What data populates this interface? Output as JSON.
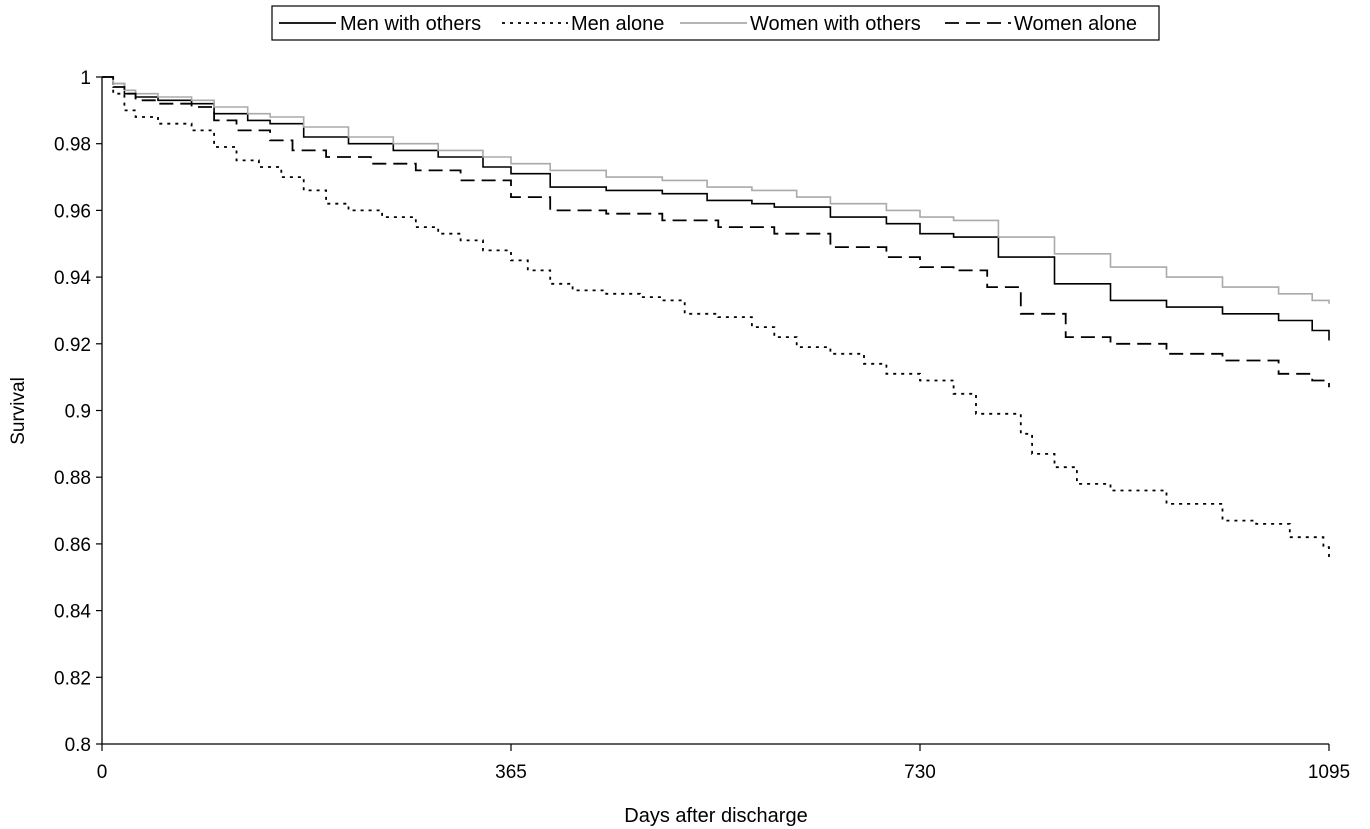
{
  "chart_data": {
    "type": "line",
    "xlabel": "Days after discharge",
    "ylabel": "Survival",
    "xlim": [
      0,
      1095
    ],
    "ylim": [
      0.8,
      1
    ],
    "xticks": [
      "0",
      "365",
      "730",
      "1095"
    ],
    "yticks": [
      "0.8",
      "0.82",
      "0.84",
      "0.86",
      "0.88",
      "0.9",
      "0.92",
      "0.94",
      "0.96",
      "0.98",
      "1"
    ],
    "grid": false,
    "legend_position": "top-center",
    "series": [
      {
        "name": "Men with others",
        "color": "#000000",
        "style": "solid",
        "x": [
          0,
          10,
          20,
          30,
          50,
          80,
          100,
          130,
          150,
          180,
          220,
          260,
          300,
          340,
          365,
          400,
          450,
          500,
          540,
          580,
          600,
          650,
          700,
          730,
          760,
          800,
          850,
          900,
          950,
          1000,
          1050,
          1080,
          1095
        ],
        "y": [
          1.0,
          0.998,
          0.995,
          0.994,
          0.993,
          0.992,
          0.989,
          0.987,
          0.986,
          0.982,
          0.98,
          0.978,
          0.976,
          0.973,
          0.971,
          0.967,
          0.966,
          0.965,
          0.963,
          0.962,
          0.961,
          0.958,
          0.956,
          0.953,
          0.952,
          0.946,
          0.938,
          0.933,
          0.931,
          0.929,
          0.927,
          0.924,
          0.921
        ]
      },
      {
        "name": "Men alone",
        "color": "#000000",
        "style": "dotted",
        "x": [
          0,
          10,
          20,
          30,
          50,
          80,
          100,
          120,
          140,
          160,
          180,
          200,
          220,
          250,
          280,
          300,
          320,
          340,
          365,
          380,
          400,
          420,
          450,
          480,
          500,
          520,
          550,
          580,
          600,
          620,
          650,
          680,
          700,
          730,
          760,
          780,
          820,
          830,
          850,
          870,
          900,
          950,
          1000,
          1030,
          1060,
          1090,
          1095
        ],
        "y": [
          1.0,
          0.995,
          0.99,
          0.988,
          0.986,
          0.984,
          0.979,
          0.975,
          0.973,
          0.97,
          0.966,
          0.962,
          0.96,
          0.958,
          0.955,
          0.953,
          0.951,
          0.948,
          0.945,
          0.942,
          0.938,
          0.936,
          0.935,
          0.934,
          0.933,
          0.929,
          0.928,
          0.925,
          0.922,
          0.919,
          0.917,
          0.914,
          0.911,
          0.909,
          0.905,
          0.899,
          0.893,
          0.887,
          0.883,
          0.878,
          0.876,
          0.872,
          0.867,
          0.866,
          0.862,
          0.859,
          0.855
        ]
      },
      {
        "name": "Women with others",
        "color": "#aaaaaa",
        "style": "solid",
        "x": [
          0,
          10,
          20,
          30,
          50,
          80,
          100,
          130,
          150,
          180,
          220,
          260,
          300,
          340,
          365,
          400,
          450,
          500,
          540,
          580,
          620,
          650,
          700,
          730,
          760,
          800,
          850,
          900,
          950,
          1000,
          1050,
          1080,
          1095
        ],
        "y": [
          1.0,
          0.998,
          0.996,
          0.995,
          0.994,
          0.993,
          0.991,
          0.989,
          0.988,
          0.985,
          0.982,
          0.98,
          0.978,
          0.976,
          0.974,
          0.972,
          0.97,
          0.969,
          0.967,
          0.966,
          0.964,
          0.962,
          0.96,
          0.958,
          0.957,
          0.952,
          0.947,
          0.943,
          0.94,
          0.937,
          0.935,
          0.933,
          0.932
        ]
      },
      {
        "name": "Women alone",
        "color": "#000000",
        "style": "dashed",
        "x": [
          0,
          10,
          20,
          30,
          50,
          80,
          100,
          120,
          150,
          170,
          200,
          240,
          280,
          320,
          365,
          400,
          450,
          500,
          550,
          600,
          650,
          700,
          730,
          760,
          790,
          820,
          860,
          900,
          950,
          1000,
          1050,
          1080,
          1095
        ],
        "y": [
          1.0,
          0.997,
          0.995,
          0.993,
          0.992,
          0.991,
          0.987,
          0.984,
          0.981,
          0.978,
          0.976,
          0.974,
          0.972,
          0.969,
          0.964,
          0.96,
          0.959,
          0.957,
          0.955,
          0.953,
          0.949,
          0.946,
          0.943,
          0.942,
          0.937,
          0.929,
          0.922,
          0.92,
          0.917,
          0.915,
          0.911,
          0.909,
          0.907
        ]
      }
    ]
  }
}
